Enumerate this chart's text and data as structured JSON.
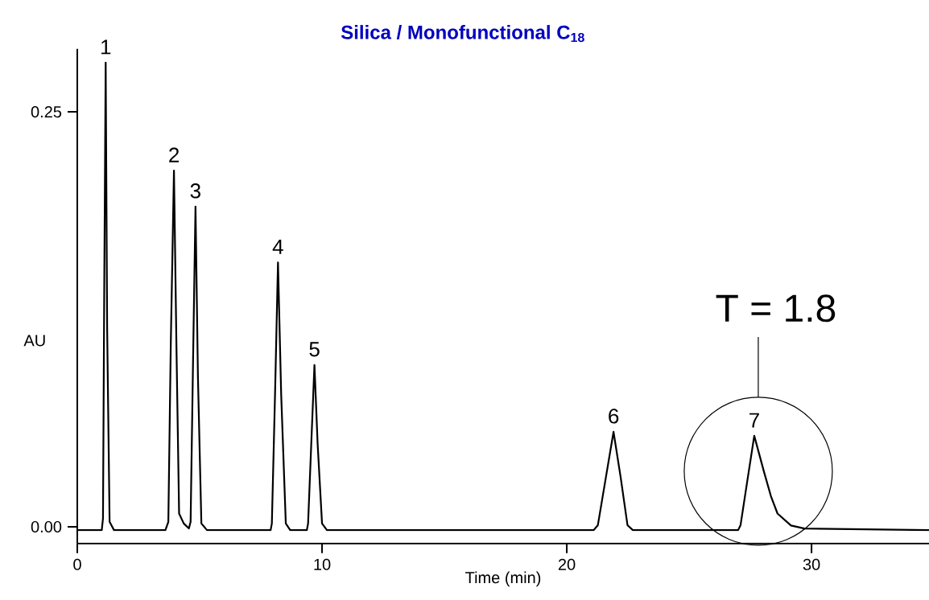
{
  "chart_data": {
    "type": "line",
    "title": "**Silica / Monofunctional C$_{18}$**",
    "xlabel": "Time (min)",
    "ylabel": "AU",
    "xlim": [
      0,
      34.8
    ],
    "ylim": [
      -0.01,
      0.288
    ],
    "xticks": [
      0,
      10,
      20,
      30
    ],
    "yticks": [
      {
        "value": 0,
        "label": "0.00"
      },
      {
        "value": 0.25,
        "label": "0.25"
      }
    ],
    "series": [
      {
        "color": "#000000",
        "x": [
          0,
          1.0,
          1.05,
          1.1,
          1.16,
          1.22,
          1.32,
          1.5,
          3.6,
          3.72,
          3.82,
          3.95,
          4.05,
          4.16,
          4.35,
          4.56,
          4.63,
          4.73,
          4.83,
          4.93,
          5.07,
          5.3,
          7.9,
          7.95,
          8.08,
          8.2,
          8.33,
          8.52,
          8.7,
          9.38,
          9.43,
          9.56,
          9.69,
          9.82,
          10.0,
          10.2,
          21.1,
          21.27,
          21.6,
          21.91,
          22.2,
          22.48,
          22.7,
          27.0,
          27.1,
          27.4,
          27.66,
          28.06,
          28.34,
          28.61,
          29.16,
          29.71,
          34.8
        ],
        "values": [
          -0.002,
          -0.002,
          0.005,
          0.14,
          0.2797,
          0.12,
          0.003,
          -0.002,
          -0.002,
          0.003,
          0.11,
          0.2146,
          0.11,
          0.008,
          0.002,
          -0.001,
          0.003,
          0.1,
          0.1929,
          0.09,
          0.002,
          -0.002,
          -0.002,
          0.002,
          0.08,
          0.1593,
          0.08,
          0.002,
          -0.002,
          -0.002,
          0.002,
          0.05,
          0.0975,
          0.05,
          0.002,
          -0.002,
          -0.002,
          0.001,
          0.03,
          0.0572,
          0.03,
          0.001,
          -0.002,
          -0.002,
          0.001,
          0.03,
          0.0548,
          0.033,
          0.0185,
          0.008,
          0.0008,
          -0.001,
          -0.002
        ]
      }
    ],
    "annotations": [
      {
        "text": "1",
        "x": 1.16,
        "y": 0.2797
      },
      {
        "text": "2",
        "x": 3.95,
        "y": 0.2146
      },
      {
        "text": "3",
        "x": 4.83,
        "y": 0.1929
      },
      {
        "text": "4",
        "x": 8.2,
        "y": 0.1593
      },
      {
        "text": "5",
        "x": 9.69,
        "y": 0.0975
      },
      {
        "text": "6",
        "x": 21.91,
        "y": 0.0572
      },
      {
        "text": "7",
        "x": 27.66,
        "y": 0.0548
      },
      {
        "text": "T = 1.8",
        "x": 27.66,
        "y": 0.0548
      }
    ]
  }
}
